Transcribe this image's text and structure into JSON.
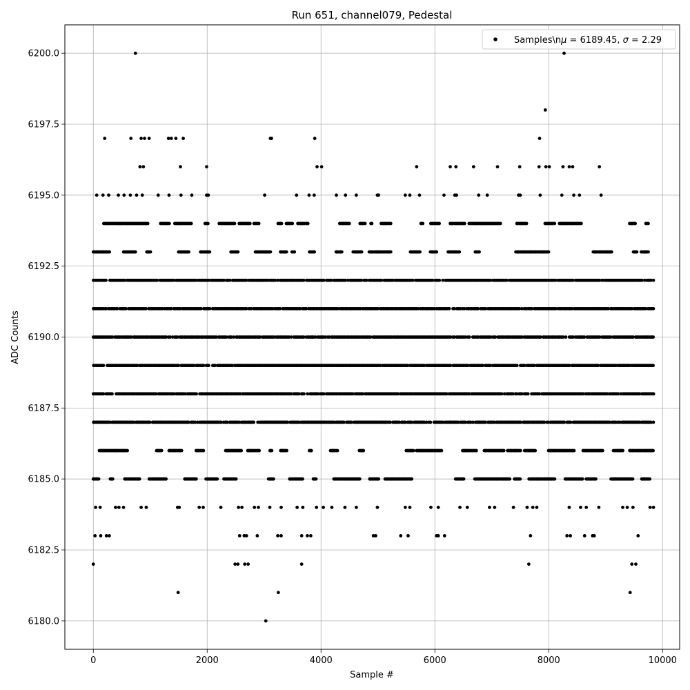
{
  "chart_data": {
    "type": "scatter",
    "title": "Run 651, channel079, Pedestal",
    "xlabel": "Sample #",
    "ylabel": "ADC Counts",
    "xlim": [
      -500,
      10300
    ],
    "ylim": [
      6179,
      6201
    ],
    "x_ticks": [
      0,
      2000,
      4000,
      6000,
      8000,
      10000
    ],
    "x_tick_labels": [
      "0",
      "2000",
      "4000",
      "6000",
      "8000",
      "10000"
    ],
    "y_ticks": [
      6180.0,
      6182.5,
      6185.0,
      6187.5,
      6190.0,
      6192.5,
      6195.0,
      6197.5,
      6200.0
    ],
    "y_tick_labels": [
      "6180.0",
      "6182.5",
      "6185.0",
      "6187.5",
      "6190.0",
      "6192.5",
      "6195.0",
      "6197.5",
      "6200.0"
    ],
    "grid": true,
    "legend_position": "top-right",
    "series": [
      {
        "legend_label_prefix": "Samples\\n",
        "mean": "6189.45",
        "sigma": "2.29",
        "color": "#000000",
        "marker": "dot",
        "n_samples": 9850,
        "dense_levels": [
          {
            "y": 6187,
            "x_range": [
              0,
              9850
            ]
          },
          {
            "y": 6188,
            "x_range": [
              0,
              9850
            ]
          },
          {
            "y": 6189,
            "x_range": [
              0,
              9850
            ]
          },
          {
            "y": 6190,
            "x_range": [
              0,
              9850
            ]
          },
          {
            "y": 6191,
            "x_range": [
              0,
              9850
            ]
          },
          {
            "y": 6192,
            "x_range": [
              0,
              9850
            ]
          }
        ],
        "sparse_levels": [
          {
            "y": 6185,
            "x_range": [
              0,
              9850
            ]
          },
          {
            "y": 6186,
            "x_range": [
              0,
              9850
            ]
          },
          {
            "y": 6193,
            "x_range": [
              0,
              9750
            ]
          },
          {
            "y": 6194,
            "x_range": [
              100,
              9750
            ]
          }
        ],
        "points": [
          [
            0,
            6182
          ],
          [
            740,
            6200
          ],
          [
            8270,
            6200
          ],
          [
            7940,
            6198
          ],
          [
            1490,
            6181
          ],
          [
            3250,
            6181
          ],
          [
            3030,
            6180
          ],
          [
            9430,
            6181
          ],
          [
            3660,
            6182
          ],
          [
            7650,
            6182
          ],
          [
            9460,
            6182
          ],
          [
            9530,
            6182
          ],
          [
            2490,
            6182
          ],
          [
            2540,
            6182
          ],
          [
            2660,
            6182
          ],
          [
            2720,
            6182
          ],
          [
            200,
            6197
          ],
          [
            660,
            6197
          ],
          [
            840,
            6197
          ],
          [
            900,
            6197
          ],
          [
            980,
            6197
          ],
          [
            1320,
            6197
          ],
          [
            1370,
            6197
          ],
          [
            1450,
            6197
          ],
          [
            1580,
            6197
          ],
          [
            3110,
            6197
          ],
          [
            3130,
            6197
          ],
          [
            3890,
            6197
          ],
          [
            7840,
            6197
          ],
          [
            820,
            6196
          ],
          [
            880,
            6196
          ],
          [
            1530,
            6196
          ],
          [
            1990,
            6196
          ],
          [
            3930,
            6196
          ],
          [
            4010,
            6196
          ],
          [
            5680,
            6196
          ],
          [
            6270,
            6196
          ],
          [
            6370,
            6196
          ],
          [
            6680,
            6196
          ],
          [
            7100,
            6196
          ],
          [
            7490,
            6196
          ],
          [
            7830,
            6196
          ],
          [
            7950,
            6196
          ],
          [
            8010,
            6196
          ],
          [
            8250,
            6196
          ],
          [
            8360,
            6196
          ],
          [
            8420,
            6196
          ],
          [
            8890,
            6196
          ],
          [
            60,
            6195
          ],
          [
            170,
            6195
          ],
          [
            270,
            6195
          ],
          [
            440,
            6195
          ],
          [
            540,
            6195
          ],
          [
            650,
            6195
          ],
          [
            760,
            6195
          ],
          [
            860,
            6195
          ],
          [
            1140,
            6195
          ],
          [
            1330,
            6195
          ],
          [
            1540,
            6195
          ],
          [
            1730,
            6195
          ],
          [
            1990,
            6195
          ],
          [
            2020,
            6195
          ],
          [
            3010,
            6195
          ],
          [
            3570,
            6195
          ],
          [
            3790,
            6195
          ],
          [
            3880,
            6195
          ],
          [
            4270,
            6195
          ],
          [
            4430,
            6195
          ],
          [
            4620,
            6195
          ],
          [
            4990,
            6195
          ],
          [
            5010,
            6195
          ],
          [
            5480,
            6195
          ],
          [
            5560,
            6195
          ],
          [
            5730,
            6195
          ],
          [
            6160,
            6195
          ],
          [
            6350,
            6195
          ],
          [
            6380,
            6195
          ],
          [
            6770,
            6195
          ],
          [
            6920,
            6195
          ],
          [
            7470,
            6195
          ],
          [
            7500,
            6195
          ],
          [
            7850,
            6195
          ],
          [
            8230,
            6195
          ],
          [
            8440,
            6195
          ],
          [
            8540,
            6195
          ],
          [
            8920,
            6195
          ],
          [
            30,
            6183
          ],
          [
            130,
            6183
          ],
          [
            230,
            6183
          ],
          [
            280,
            6183
          ],
          [
            2570,
            6183
          ],
          [
            2650,
            6183
          ],
          [
            2690,
            6183
          ],
          [
            2880,
            6183
          ],
          [
            3240,
            6183
          ],
          [
            3300,
            6183
          ],
          [
            3660,
            6183
          ],
          [
            3760,
            6183
          ],
          [
            3820,
            6183
          ],
          [
            4920,
            6183
          ],
          [
            4960,
            6183
          ],
          [
            5400,
            6183
          ],
          [
            5530,
            6183
          ],
          [
            6030,
            6183
          ],
          [
            6060,
            6183
          ],
          [
            6170,
            6183
          ],
          [
            7680,
            6183
          ],
          [
            8320,
            6183
          ],
          [
            8380,
            6183
          ],
          [
            8630,
            6183
          ],
          [
            8770,
            6183
          ],
          [
            8800,
            6183
          ],
          [
            9570,
            6183
          ],
          [
            40,
            6184
          ],
          [
            120,
            6184
          ],
          [
            390,
            6184
          ],
          [
            450,
            6184
          ],
          [
            530,
            6184
          ],
          [
            840,
            6184
          ],
          [
            930,
            6184
          ],
          [
            1480,
            6184
          ],
          [
            1510,
            6184
          ],
          [
            1860,
            6184
          ],
          [
            1930,
            6184
          ],
          [
            2240,
            6184
          ],
          [
            2550,
            6184
          ],
          [
            2610,
            6184
          ],
          [
            2830,
            6184
          ],
          [
            2900,
            6184
          ],
          [
            3100,
            6184
          ],
          [
            3300,
            6184
          ],
          [
            3580,
            6184
          ],
          [
            3680,
            6184
          ],
          [
            3920,
            6184
          ],
          [
            4040,
            6184
          ],
          [
            4190,
            6184
          ],
          [
            4420,
            6184
          ],
          [
            4620,
            6184
          ],
          [
            4990,
            6184
          ],
          [
            5480,
            6184
          ],
          [
            5560,
            6184
          ],
          [
            5930,
            6184
          ],
          [
            6060,
            6184
          ],
          [
            6440,
            6184
          ],
          [
            6570,
            6184
          ],
          [
            6960,
            6184
          ],
          [
            7050,
            6184
          ],
          [
            7380,
            6184
          ],
          [
            7620,
            6184
          ],
          [
            7720,
            6184
          ],
          [
            7790,
            6184
          ],
          [
            8360,
            6184
          ],
          [
            8560,
            6184
          ],
          [
            8660,
            6184
          ],
          [
            8880,
            6184
          ],
          [
            9300,
            6184
          ],
          [
            9380,
            6184
          ],
          [
            9480,
            6184
          ],
          [
            9780,
            6184
          ],
          [
            9840,
            6184
          ]
        ]
      }
    ]
  }
}
